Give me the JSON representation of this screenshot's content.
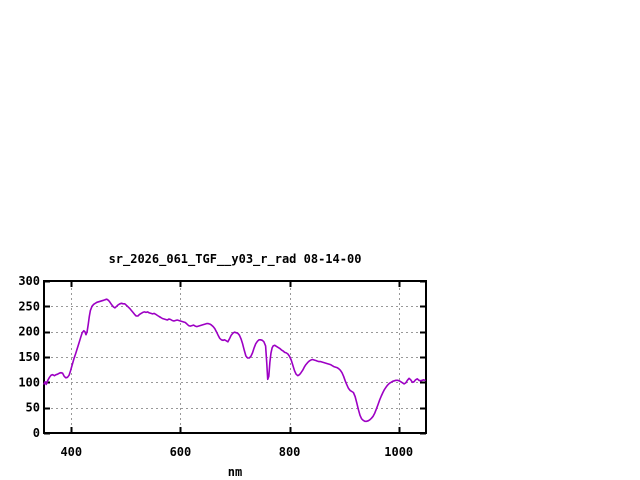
{
  "window": {
    "background_color": "#ffffff"
  },
  "chart_data": {
    "type": "line",
    "title": "sr_2026_061_TGF__y03_r_rad 08-14-00",
    "xlabel": "nm",
    "ylabel": "",
    "xlim": [
      350,
      1050
    ],
    "ylim": [
      0,
      300
    ],
    "xticks": [
      400,
      600,
      800,
      1000
    ],
    "yticks": [
      0,
      50,
      100,
      150,
      200,
      250,
      300
    ],
    "grid": true,
    "legend_position": "none",
    "axis_color": "#000000",
    "grid_color": "#999999",
    "series": [
      {
        "name": "sr_2026_061_TGF__y03_r_rad",
        "color": "#9d00c4",
        "points": [
          [
            350,
            97
          ],
          [
            352,
            101
          ],
          [
            354,
            96
          ],
          [
            357,
            104
          ],
          [
            360,
            110
          ],
          [
            363,
            114
          ],
          [
            366,
            115
          ],
          [
            369,
            113
          ],
          [
            372,
            115
          ],
          [
            375,
            116
          ],
          [
            378,
            118
          ],
          [
            381,
            119
          ],
          [
            384,
            118
          ],
          [
            387,
            112
          ],
          [
            390,
            109
          ],
          [
            393,
            110
          ],
          [
            396,
            114
          ],
          [
            399,
            124
          ],
          [
            402,
            136
          ],
          [
            405,
            147
          ],
          [
            408,
            157
          ],
          [
            411,
            167
          ],
          [
            414,
            177
          ],
          [
            417,
            188
          ],
          [
            420,
            198
          ],
          [
            423,
            202
          ],
          [
            425,
            200
          ],
          [
            427,
            194
          ],
          [
            429,
            200
          ],
          [
            431,
            214
          ],
          [
            433,
            230
          ],
          [
            435,
            242
          ],
          [
            438,
            250
          ],
          [
            441,
            254
          ],
          [
            444,
            256
          ],
          [
            447,
            258
          ],
          [
            450,
            259
          ],
          [
            453,
            260
          ],
          [
            456,
            261
          ],
          [
            459,
            262
          ],
          [
            462,
            263
          ],
          [
            465,
            264
          ],
          [
            468,
            262
          ],
          [
            471,
            258
          ],
          [
            474,
            253
          ],
          [
            477,
            249
          ],
          [
            480,
            247
          ],
          [
            483,
            250
          ],
          [
            486,
            253
          ],
          [
            489,
            255
          ],
          [
            492,
            256
          ],
          [
            495,
            255
          ],
          [
            498,
            255
          ],
          [
            501,
            252
          ],
          [
            504,
            249
          ],
          [
            507,
            246
          ],
          [
            510,
            242
          ],
          [
            513,
            238
          ],
          [
            516,
            234
          ],
          [
            519,
            231
          ],
          [
            522,
            231
          ],
          [
            525,
            234
          ],
          [
            528,
            236
          ],
          [
            531,
            238
          ],
          [
            534,
            239
          ],
          [
            537,
            238
          ],
          [
            540,
            239
          ],
          [
            543,
            237
          ],
          [
            546,
            236
          ],
          [
            549,
            235
          ],
          [
            552,
            236
          ],
          [
            555,
            234
          ],
          [
            558,
            232
          ],
          [
            561,
            230
          ],
          [
            564,
            228
          ],
          [
            567,
            226
          ],
          [
            570,
            225
          ],
          [
            573,
            224
          ],
          [
            576,
            223
          ],
          [
            579,
            225
          ],
          [
            582,
            224
          ],
          [
            585,
            222
          ],
          [
            588,
            221
          ],
          [
            591,
            222
          ],
          [
            594,
            223
          ],
          [
            597,
            222
          ],
          [
            600,
            221
          ],
          [
            603,
            220
          ],
          [
            606,
            219
          ],
          [
            609,
            218
          ],
          [
            612,
            215
          ],
          [
            615,
            212
          ],
          [
            618,
            211
          ],
          [
            621,
            212
          ],
          [
            624,
            213
          ],
          [
            627,
            211
          ],
          [
            630,
            210
          ],
          [
            633,
            211
          ],
          [
            636,
            212
          ],
          [
            639,
            213
          ],
          [
            642,
            214
          ],
          [
            645,
            215
          ],
          [
            648,
            216
          ],
          [
            651,
            216
          ],
          [
            654,
            215
          ],
          [
            657,
            213
          ],
          [
            660,
            210
          ],
          [
            663,
            206
          ],
          [
            666,
            200
          ],
          [
            669,
            193
          ],
          [
            672,
            187
          ],
          [
            675,
            184
          ],
          [
            678,
            183
          ],
          [
            681,
            184
          ],
          [
            684,
            182
          ],
          [
            687,
            180
          ],
          [
            690,
            186
          ],
          [
            693,
            193
          ],
          [
            696,
            197
          ],
          [
            699,
            199
          ],
          [
            702,
            198
          ],
          [
            705,
            197
          ],
          [
            708,
            193
          ],
          [
            711,
            186
          ],
          [
            714,
            176
          ],
          [
            717,
            163
          ],
          [
            720,
            152
          ],
          [
            723,
            148
          ],
          [
            726,
            148
          ],
          [
            729,
            151
          ],
          [
            732,
            158
          ],
          [
            735,
            168
          ],
          [
            738,
            176
          ],
          [
            741,
            181
          ],
          [
            744,
            184
          ],
          [
            747,
            184
          ],
          [
            750,
            183
          ],
          [
            753,
            180
          ],
          [
            756,
            172
          ],
          [
            758,
            140
          ],
          [
            760,
            106
          ],
          [
            762,
            112
          ],
          [
            764,
            140
          ],
          [
            766,
            158
          ],
          [
            768,
            168
          ],
          [
            770,
            172
          ],
          [
            773,
            173
          ],
          [
            776,
            171
          ],
          [
            779,
            169
          ],
          [
            782,
            167
          ],
          [
            785,
            164
          ],
          [
            788,
            162
          ],
          [
            791,
            159
          ],
          [
            794,
            158
          ],
          [
            797,
            156
          ],
          [
            800,
            151
          ],
          [
            803,
            144
          ],
          [
            806,
            134
          ],
          [
            809,
            123
          ],
          [
            812,
            116
          ],
          [
            815,
            113
          ],
          [
            818,
            115
          ],
          [
            821,
            119
          ],
          [
            824,
            124
          ],
          [
            827,
            130
          ],
          [
            830,
            135
          ],
          [
            833,
            139
          ],
          [
            836,
            142
          ],
          [
            839,
            144
          ],
          [
            842,
            145
          ],
          [
            845,
            144
          ],
          [
            848,
            143
          ],
          [
            851,
            142
          ],
          [
            854,
            141
          ],
          [
            857,
            141
          ],
          [
            860,
            140
          ],
          [
            863,
            139
          ],
          [
            866,
            138
          ],
          [
            869,
            137
          ],
          [
            872,
            136
          ],
          [
            875,
            135
          ],
          [
            878,
            133
          ],
          [
            881,
            131
          ],
          [
            884,
            130
          ],
          [
            887,
            129
          ],
          [
            890,
            127
          ],
          [
            893,
            124
          ],
          [
            896,
            119
          ],
          [
            899,
            112
          ],
          [
            902,
            103
          ],
          [
            905,
            95
          ],
          [
            908,
            88
          ],
          [
            911,
            84
          ],
          [
            914,
            82
          ],
          [
            917,
            80
          ],
          [
            920,
            72
          ],
          [
            923,
            60
          ],
          [
            926,
            47
          ],
          [
            929,
            35
          ],
          [
            932,
            28
          ],
          [
            935,
            25
          ],
          [
            938,
            23
          ],
          [
            941,
            23
          ],
          [
            944,
            24
          ],
          [
            947,
            26
          ],
          [
            950,
            29
          ],
          [
            953,
            33
          ],
          [
            956,
            39
          ],
          [
            959,
            47
          ],
          [
            962,
            56
          ],
          [
            965,
            65
          ],
          [
            968,
            73
          ],
          [
            971,
            80
          ],
          [
            974,
            86
          ],
          [
            977,
            91
          ],
          [
            980,
            95
          ],
          [
            983,
            98
          ],
          [
            986,
            100
          ],
          [
            989,
            102
          ],
          [
            992,
            103
          ],
          [
            995,
            104
          ],
          [
            998,
            104
          ],
          [
            1001,
            103
          ],
          [
            1004,
            101
          ],
          [
            1007,
            99
          ],
          [
            1010,
            97
          ],
          [
            1013,
            99
          ],
          [
            1016,
            104
          ],
          [
            1019,
            108
          ],
          [
            1022,
            105
          ],
          [
            1025,
            100
          ],
          [
            1028,
            101
          ],
          [
            1031,
            105
          ],
          [
            1034,
            107
          ],
          [
            1037,
            104
          ],
          [
            1040,
            103
          ],
          [
            1043,
            104
          ],
          [
            1046,
            105
          ],
          [
            1048,
            104
          ]
        ]
      }
    ]
  }
}
